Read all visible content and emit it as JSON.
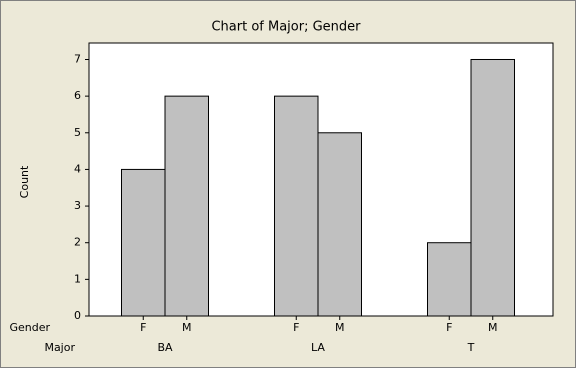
{
  "chart_data": {
    "type": "bar",
    "title": "Chart of Major; Gender",
    "y_label": "Count",
    "row_labels": [
      "Gender",
      "Major"
    ],
    "categories": [
      "BA",
      "LA",
      "T"
    ],
    "series": [
      {
        "name": "F",
        "color": "#c0c0c0",
        "values": [
          4,
          6,
          2
        ]
      },
      {
        "name": "M",
        "color": "#c0c0c0",
        "values": [
          6,
          5,
          7
        ]
      }
    ],
    "ylim": [
      0,
      7.45
    ],
    "yticks": [
      0,
      1,
      2,
      3,
      4,
      5,
      6,
      7
    ]
  }
}
